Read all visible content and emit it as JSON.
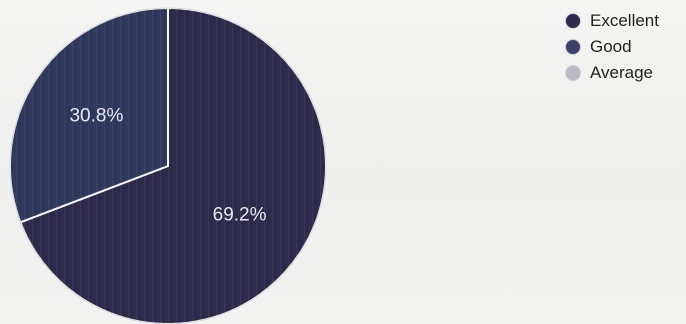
{
  "chart_data": {
    "type": "pie",
    "categories": [
      "Excellent",
      "Good",
      "Average"
    ],
    "values": [
      69.2,
      30.8,
      0
    ],
    "value_labels": [
      "69.2%",
      "30.8%",
      ""
    ],
    "legend_position": "top-right",
    "start_angle": "top, clockwise"
  },
  "legend": {
    "items": [
      {
        "label": "Excellent",
        "color": "#2f2b4c"
      },
      {
        "label": "Good",
        "color": "#3b3f69"
      },
      {
        "label": "Average",
        "color": "#b9b9c4"
      }
    ]
  },
  "colors": {
    "slice_excellent": "#2f2b4c",
    "slice_good": "#2f3a5e",
    "slice_border": "#f7f7f5"
  }
}
